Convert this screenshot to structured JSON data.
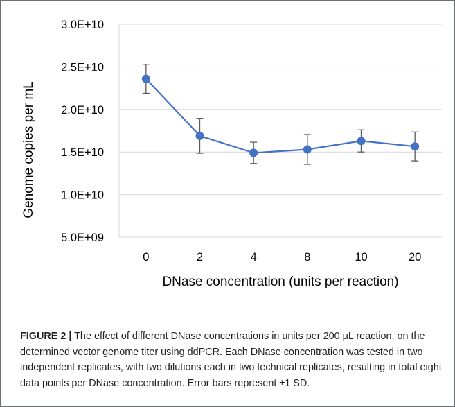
{
  "chart_data": {
    "type": "line",
    "categories": [
      "0",
      "2",
      "4",
      "8",
      "10",
      "20"
    ],
    "series": [
      {
        "values": [
          23600000000.0,
          16900000000.0,
          14900000000.0,
          15300000000.0,
          16300000000.0,
          15650000000.0
        ],
        "error": [
          1700000000.0,
          2050000000.0,
          1250000000.0,
          1750000000.0,
          1300000000.0,
          1700000000.0
        ]
      }
    ],
    "xlabel": "DNase concentration (units per reaction)",
    "ylabel": "Genome copies per mL",
    "ylim": [
      5000000000.0,
      30000000000.0
    ],
    "yticks": [
      "5.0E+09",
      "1.0E+10",
      "1.5E+10",
      "2.0E+10",
      "2.5E+10",
      "3.0E+10"
    ],
    "grid": "horizontal",
    "legend": "none",
    "colors": {
      "series": "#4472c4",
      "marker_edge": "#4472c4",
      "error_bar": "#595959",
      "grid": "#d9d9d9"
    }
  },
  "caption": {
    "label": "FIGURE 2 |",
    "text": " The effect of different DNase concentrations in units per 200 μL reaction, on the determined vector genome titer using ddPCR. Each DNase concentration was tested in two independent replicates, with two dilutions each in two technical replicates, resulting in total eight data points per DNase concentration. Error bars represent ±1 SD."
  }
}
